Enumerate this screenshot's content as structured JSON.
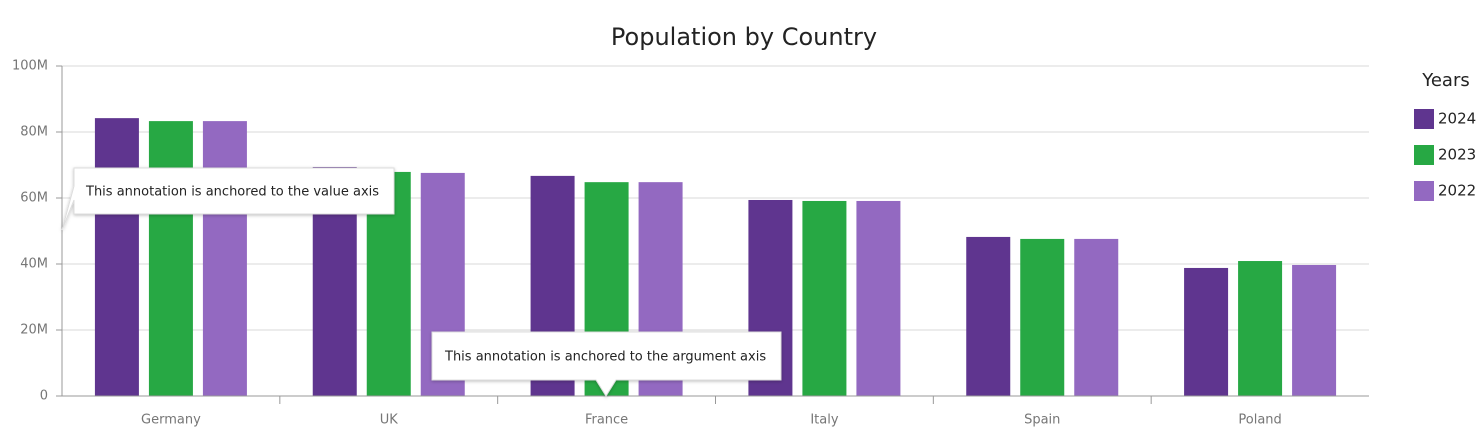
{
  "chart_data": {
    "type": "bar",
    "title": "Population by Country",
    "categories": [
      "Germany",
      "UK",
      "France",
      "Italy",
      "Spain",
      "Poland"
    ],
    "series": [
      {
        "name": "2024",
        "color": "#5f358f",
        "values": [
          84200000,
          69400000,
          66700000,
          59400000,
          48200000,
          38800000
        ]
      },
      {
        "name": "2023",
        "color": "#27a844",
        "values": [
          83300000,
          67900000,
          64800000,
          59100000,
          47600000,
          40900000
        ]
      },
      {
        "name": "2022",
        "color": "#9369c1",
        "values": [
          83300000,
          67600000,
          64800000,
          59100000,
          47600000,
          39700000
        ]
      }
    ],
    "ylim": [
      0,
      100000000
    ],
    "yticks": [
      0,
      {
        "value": 20000000,
        "label": "20M"
      },
      {
        "value": 40000000,
        "label": "40M"
      },
      {
        "value": 60000000,
        "label": "60M"
      },
      {
        "value": 80000000,
        "label": "80M"
      },
      {
        "value": 100000000,
        "label": "100M"
      }
    ],
    "grid": true,
    "legend_title": "Years",
    "legend_position": "right",
    "annotations": [
      "This annotation is anchored to the value axis",
      "This annotation is anchored to the argument axis"
    ]
  }
}
